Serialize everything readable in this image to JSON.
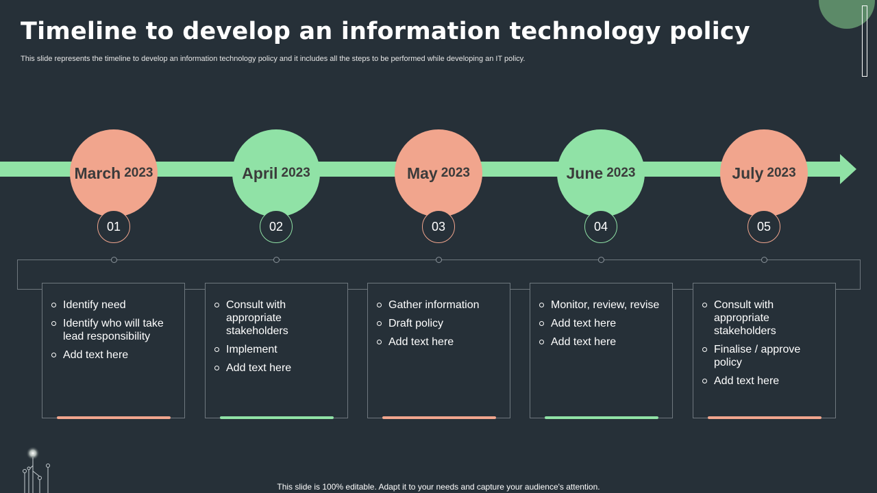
{
  "header": {
    "title": "Timeline to develop an information technology policy",
    "subtitle": "This slide represents the timeline to develop an information technology policy and it includes all the steps to be performed while developing an IT policy."
  },
  "colors": {
    "background": "#263038",
    "salmon": "#f1a58d",
    "green": "#90e2a6"
  },
  "timeline": [
    {
      "month": "March",
      "year": "2023",
      "number": "01",
      "color": "salmon",
      "items": [
        "Identify  need",
        "Identify  who will take lead responsibility",
        "Add text here"
      ]
    },
    {
      "month": "April",
      "year": "2023",
      "number": "02",
      "color": "green",
      "items": [
        "Consult with appropriate stakeholders",
        "Implement",
        "Add text here"
      ]
    },
    {
      "month": "May",
      "year": "2023",
      "number": "03",
      "color": "salmon",
      "items": [
        "Gather information",
        "Draft policy",
        "Add text here"
      ]
    },
    {
      "month": "June",
      "year": "2023",
      "number": "04",
      "color": "green",
      "items": [
        "Monitor, review, revise",
        "Add text here",
        "Add text here"
      ]
    },
    {
      "month": "July",
      "year": "2023",
      "number": "05",
      "color": "salmon",
      "items": [
        "Consult with appropriate stakeholders",
        "Finalise / approve policy",
        "Add text here"
      ]
    }
  ],
  "footer": {
    "text": "This slide is 100% editable. Adapt it to your needs and capture your audience's attention."
  }
}
